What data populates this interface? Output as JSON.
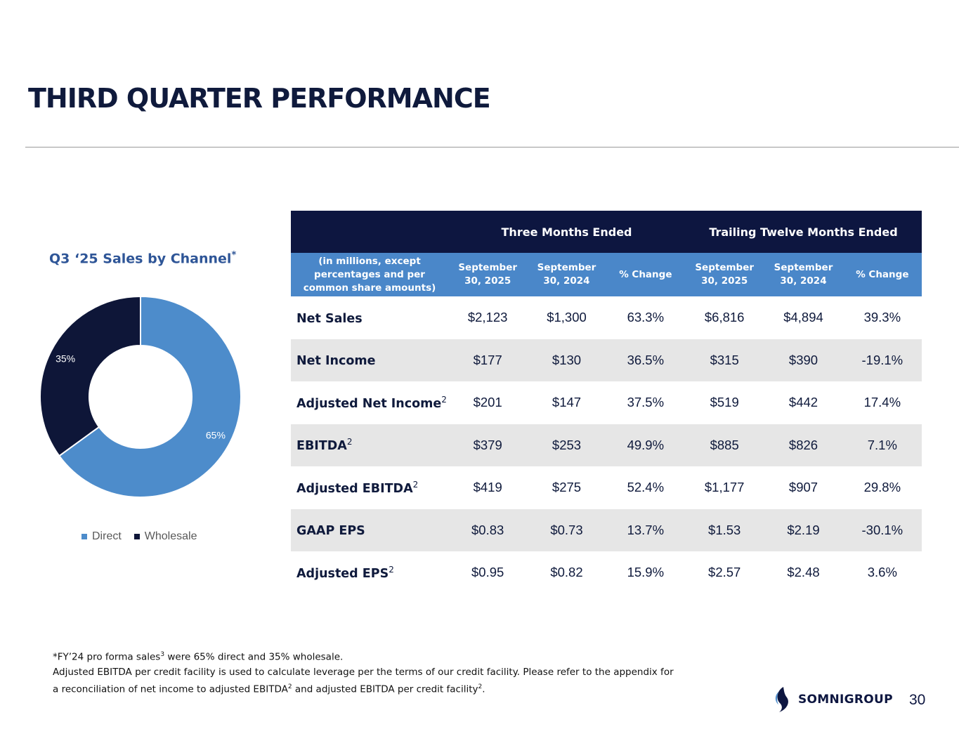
{
  "title": "THIRD QUARTER PERFORMANCE",
  "chart": {
    "title": "Q3 ‘25 Sales by Channel",
    "title_mark": "*",
    "legend": [
      {
        "label": "Direct",
        "color": "#4d8ccb"
      },
      {
        "label": "Wholesale",
        "color": "#0e1638"
      }
    ]
  },
  "chart_data": {
    "type": "pie",
    "title": "Q3 ‘25 Sales by Channel*",
    "categories": [
      "Direct",
      "Wholesale"
    ],
    "values": [
      65,
      35
    ],
    "data_labels": [
      "65%",
      "35%"
    ],
    "colors": [
      "#4d8ccb",
      "#0e1638"
    ],
    "donut": true,
    "legend_position": "bottom"
  },
  "table": {
    "group_headers": [
      "Three Months Ended",
      "Trailing Twelve Months Ended"
    ],
    "row_header_label": "(in millions, except percentages and per common share amounts)",
    "columns": [
      "September 30, 2025",
      "September 30, 2024",
      "% Change",
      "September 30, 2025",
      "September 30, 2024",
      "% Change"
    ],
    "rows": [
      {
        "label": "Net Sales",
        "sup": "",
        "values": [
          "$2,123",
          "$1,300",
          "63.3%",
          "$6,816",
          "$4,894",
          "39.3%"
        ]
      },
      {
        "label": "Net Income",
        "sup": "",
        "values": [
          "$177",
          "$130",
          "36.5%",
          "$315",
          "$390",
          "-19.1%"
        ]
      },
      {
        "label": "Adjusted Net Income",
        "sup": "2",
        "values": [
          "$201",
          "$147",
          "37.5%",
          "$519",
          "$442",
          "17.4%"
        ]
      },
      {
        "label": "EBITDA",
        "sup": "2",
        "values": [
          "$379",
          "$253",
          "49.9%",
          "$885",
          "$826",
          "7.1%"
        ]
      },
      {
        "label": "Adjusted EBITDA",
        "sup": "2",
        "values": [
          "$419",
          "$275",
          "52.4%",
          "$1,177",
          "$907",
          "29.8%"
        ]
      },
      {
        "label": "GAAP EPS",
        "sup": "",
        "values": [
          "$0.83",
          "$0.73",
          "13.7%",
          "$1.53",
          "$2.19",
          "-30.1%"
        ]
      },
      {
        "label": "Adjusted EPS",
        "sup": "2",
        "values": [
          "$0.95",
          "$0.82",
          "15.9%",
          "$2.57",
          "$2.48",
          "3.6%"
        ]
      }
    ]
  },
  "footnote": {
    "line1_a": "*FY’24 pro forma sales",
    "line1_sup": "3",
    "line1_b": " were 65% direct and 35% wholesale.",
    "line2": "Adjusted EBITDA per credit facility is used to calculate leverage per the terms of our credit facility. Please refer to the appendix for",
    "line3_a": "a reconciliation of net income to adjusted EBITDA",
    "line3_sup1": "2",
    "line3_b": " and adjusted EBITDA per credit facility",
    "line3_sup2": "2",
    "line3_c": "."
  },
  "logo_text": "SOMNIGROUP",
  "page_number": "30"
}
